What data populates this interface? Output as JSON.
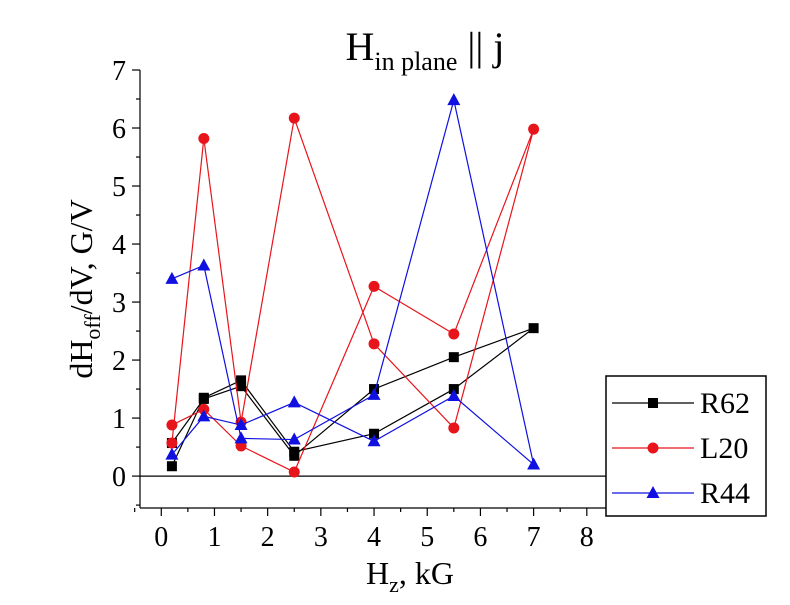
{
  "chart_data": {
    "type": "line",
    "title": {
      "main": "H",
      "subscript": "in plane",
      "suffix": " || j"
    },
    "xlabel": {
      "main": "H",
      "subscript": "z",
      "suffix": ", kG"
    },
    "ylabel": {
      "prefix": "dH",
      "subscript": "off",
      "suffix": "/dV, G/V"
    },
    "xlim": [
      -0.4,
      9.0
    ],
    "ylim": [
      -0.55,
      7.0
    ],
    "xticks": [
      0,
      1,
      2,
      3,
      4,
      5,
      6,
      7,
      8
    ],
    "yticks": [
      0,
      1,
      2,
      3,
      4,
      5,
      6,
      7
    ],
    "zero_line": true,
    "legend": {
      "position": "bottom-right"
    },
    "series": [
      {
        "name": "R62",
        "color": "#000000",
        "marker": "square",
        "x": [
          0.2,
          0.8,
          1.5,
          2.5,
          4.0,
          5.5,
          7.0,
          5.5,
          4.0,
          2.5,
          1.5,
          0.8,
          0.2
        ],
        "y": [
          0.17,
          1.35,
          1.65,
          0.42,
          0.73,
          1.5,
          2.55,
          2.05,
          1.5,
          0.35,
          1.55,
          1.33,
          0.57
        ]
      },
      {
        "name": "L20",
        "color": "#e8141b",
        "marker": "circle",
        "x": [
          0.2,
          0.8,
          1.5,
          2.5,
          4.0,
          5.5,
          7.0,
          5.5,
          4.0,
          2.5,
          1.5,
          0.8,
          0.2
        ],
        "y": [
          0.57,
          5.82,
          0.93,
          6.17,
          2.28,
          0.83,
          5.98,
          2.45,
          3.27,
          0.07,
          0.52,
          1.15,
          0.88
        ]
      },
      {
        "name": "R44",
        "color": "#1010e0",
        "marker": "triangle",
        "x": [
          0.2,
          0.8,
          1.5,
          2.5,
          4.0,
          5.5,
          7.0,
          5.5,
          4.0,
          2.5,
          1.5,
          0.8,
          0.2
        ],
        "y": [
          0.37,
          1.03,
          0.88,
          1.27,
          0.6,
          1.38,
          0.2,
          6.48,
          1.4,
          0.63,
          0.65,
          3.63,
          3.4
        ]
      }
    ]
  }
}
